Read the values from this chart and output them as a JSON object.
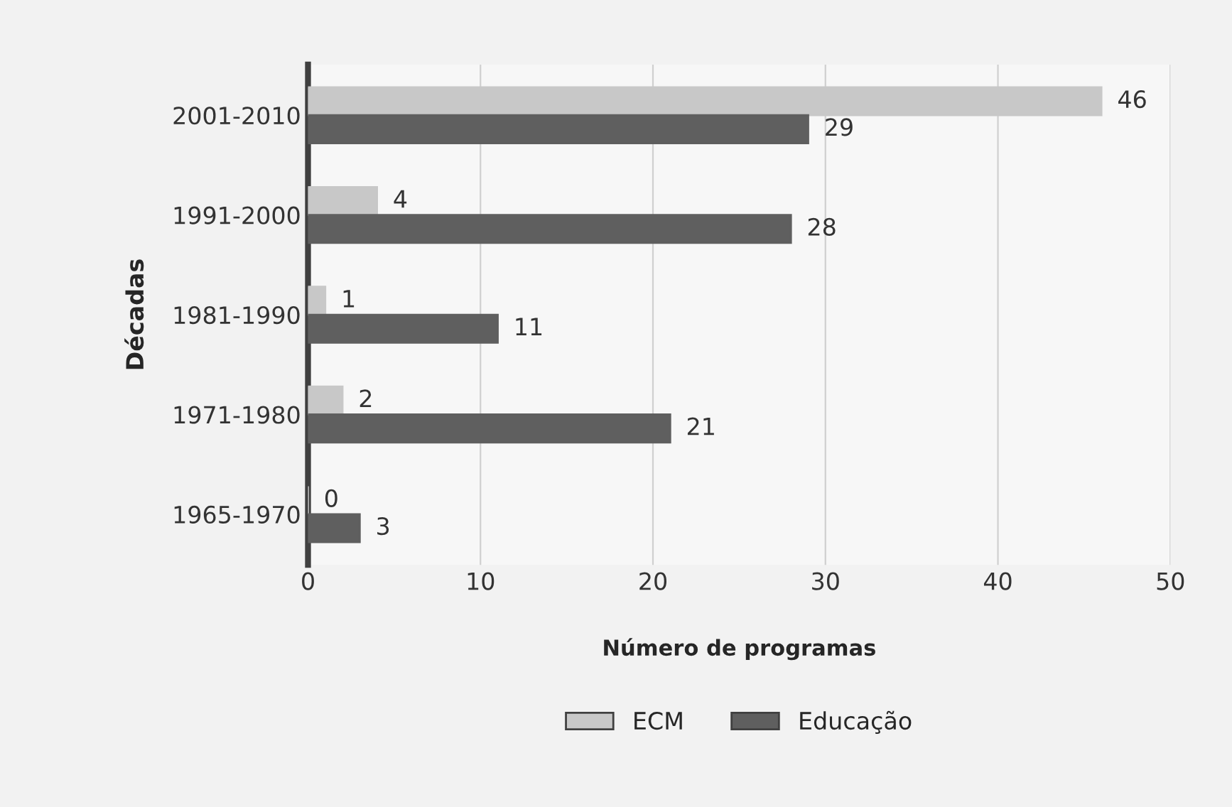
{
  "chart_data": {
    "type": "bar",
    "orientation": "horizontal",
    "xlabel": "Número de programas",
    "ylabel": "Décadas",
    "categories": [
      "2001-2010",
      "1991-2000",
      "1981-1990",
      "1971-1980",
      "1965-1970"
    ],
    "series": [
      {
        "name": "ECM",
        "color": "#c8c8c8",
        "values": [
          46,
          4,
          1,
          2,
          0
        ]
      },
      {
        "name": "Educação",
        "color": "#5f5f5f",
        "values": [
          29,
          28,
          11,
          21,
          3
        ]
      }
    ],
    "xlim": [
      0,
      50
    ],
    "xticks": [
      0,
      10,
      20,
      30,
      40,
      50
    ],
    "grid": "x",
    "legend": "bottom",
    "data_labels": true
  }
}
